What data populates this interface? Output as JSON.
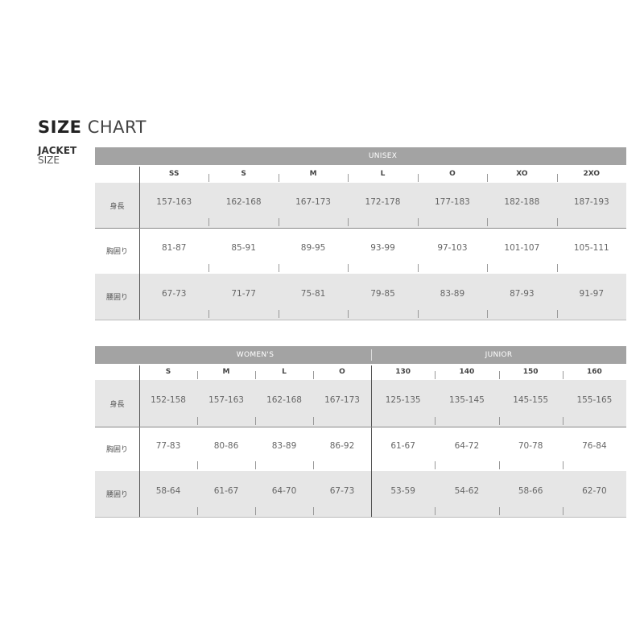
{
  "title": {
    "bold": "SIZE",
    "rest": "CHART"
  },
  "subtitle": {
    "line1": "JACKET",
    "line2": "SIZE"
  },
  "row_labels": [
    "身長",
    "胸囲り",
    "腰囲り"
  ],
  "colors": {
    "header_bar": "#a3a3a3",
    "row_gray": "#e6e6e6"
  },
  "unisex": {
    "group": "UNISEX",
    "sizes": [
      "SS",
      "S",
      "M",
      "L",
      "O",
      "XO",
      "2XO"
    ],
    "rows": [
      [
        "157-163",
        "162-168",
        "167-173",
        "172-178",
        "177-183",
        "182-188",
        "187-193"
      ],
      [
        "81-87",
        "85-91",
        "89-95",
        "93-99",
        "97-103",
        "101-107",
        "105-111"
      ],
      [
        "67-73",
        "71-77",
        "75-81",
        "79-85",
        "83-89",
        "87-93",
        "91-97"
      ]
    ]
  },
  "women": {
    "group": "WOMEN'S",
    "sizes": [
      "S",
      "M",
      "L",
      "O"
    ],
    "rows": [
      [
        "152-158",
        "157-163",
        "162-168",
        "167-173"
      ],
      [
        "77-83",
        "80-86",
        "83-89",
        "86-92"
      ],
      [
        "58-64",
        "61-67",
        "64-70",
        "67-73"
      ]
    ]
  },
  "junior": {
    "group": "JUNIOR",
    "sizes": [
      "130",
      "140",
      "150",
      "160"
    ],
    "rows": [
      [
        "125-135",
        "135-145",
        "145-155",
        "155-165"
      ],
      [
        "61-67",
        "64-72",
        "70-78",
        "76-84"
      ],
      [
        "53-59",
        "54-62",
        "58-66",
        "62-70"
      ]
    ]
  }
}
